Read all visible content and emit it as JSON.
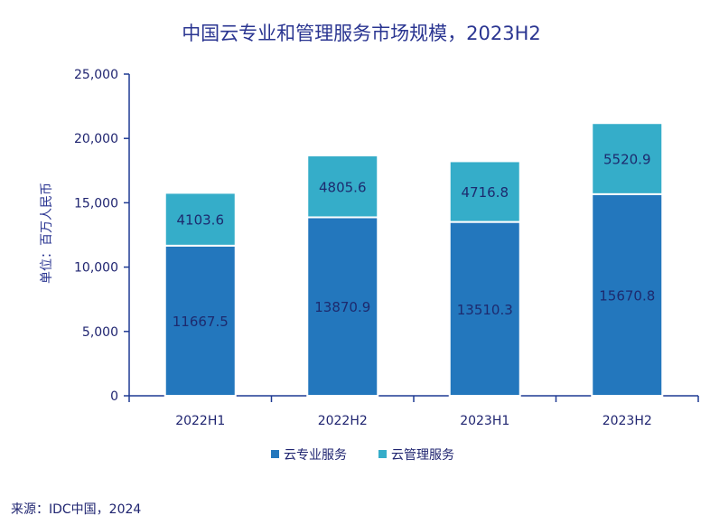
{
  "chart_data": {
    "type": "stacked-bar",
    "title": "中国云专业和管理服务市场规模，2023H2",
    "ylabel": "单位：百万人民币",
    "xlabel": "",
    "categories": [
      "2022H1",
      "2022H2",
      "2023H1",
      "2023H2"
    ],
    "series": [
      {
        "name": "云专业服务",
        "color": "#2377bd",
        "values": [
          11667.5,
          13870.9,
          13510.3,
          15670.8
        ]
      },
      {
        "name": "云管理服务",
        "color": "#35adc9",
        "values": [
          4103.6,
          4805.6,
          4716.8,
          5520.9
        ]
      }
    ],
    "data_labels": [
      [
        "11667.5",
        "13870.9",
        "13510.3",
        "15670.8"
      ],
      [
        "4103.6",
        "4805.6",
        "4716.8",
        "5520.9"
      ]
    ],
    "ylim": [
      0,
      25000
    ],
    "yticks": [
      0,
      5000,
      10000,
      15000,
      20000,
      25000
    ],
    "ytick_labels": [
      "0",
      "5,000",
      "10,000",
      "15,000",
      "20,000",
      "25,000"
    ],
    "legend_position": "bottom",
    "grid": false
  },
  "source": "来源：IDC中国，2024"
}
